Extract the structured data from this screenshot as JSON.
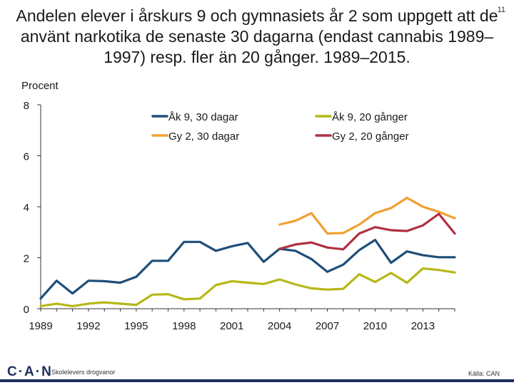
{
  "slide": {
    "title": "Andelen elever i årskurs 9 och gymnasiets år 2 som uppgett att de använt narkotika de senaste 30 dagarna (endast cannabis 1989–1997) resp. fler än 20 gånger. 1989–2015.",
    "page_number": "11",
    "logo_text": "C·A·N",
    "organization": "Skolelevers drogvanor",
    "source": "Källa: CAN"
  },
  "colors": {
    "ak9_30": "#1f4e79",
    "gy2_30": "#f0a030",
    "ak9_20": "#b5b818",
    "gy2_20": "#b03040",
    "axis": "#333333"
  },
  "chart_data": {
    "type": "line",
    "ylabel": "Procent",
    "ylim": [
      0,
      8
    ],
    "yticks": [
      0,
      2,
      4,
      6,
      8
    ],
    "xlim": [
      1989,
      2015
    ],
    "xticks": [
      1989,
      1992,
      1995,
      1998,
      2001,
      2004,
      2007,
      2010,
      2013
    ],
    "legend_position": "top",
    "series": [
      {
        "name": "Åk 9, 30 dagar",
        "color_key": "ak9_30",
        "x": [
          1989,
          1990,
          1991,
          1992,
          1993,
          1994,
          1995,
          1996,
          1997,
          1998,
          1999,
          2000,
          2001,
          2002,
          2003,
          2004,
          2005,
          2006,
          2007,
          2008,
          2009,
          2010,
          2011,
          2012,
          2013,
          2014,
          2015
        ],
        "values": [
          0.4,
          1.1,
          0.6,
          1.1,
          1.08,
          1.02,
          1.25,
          1.88,
          1.88,
          2.62,
          2.62,
          2.27,
          2.45,
          2.58,
          1.84,
          2.35,
          2.27,
          1.95,
          1.45,
          1.73,
          2.3,
          2.7,
          1.8,
          2.25,
          2.1,
          2.02,
          2.02
        ]
      },
      {
        "name": "Gy 2, 30 dagar",
        "color_key": "gy2_30",
        "x": [
          2004,
          2005,
          2006,
          2007,
          2008,
          2009,
          2010,
          2011,
          2012,
          2013,
          2014,
          2015
        ],
        "values": [
          3.3,
          3.45,
          3.75,
          2.95,
          2.97,
          3.3,
          3.75,
          3.95,
          4.35,
          4.0,
          3.8,
          3.55
        ]
      },
      {
        "name": "Åk 9, 20 gånger",
        "color_key": "ak9_20",
        "x": [
          1989,
          1990,
          1991,
          1992,
          1993,
          1994,
          1995,
          1996,
          1997,
          1998,
          1999,
          2000,
          2001,
          2002,
          2003,
          2004,
          2005,
          2006,
          2007,
          2008,
          2009,
          2010,
          2011,
          2012,
          2013,
          2014,
          2015
        ],
        "values": [
          0.1,
          0.2,
          0.1,
          0.2,
          0.25,
          0.2,
          0.15,
          0.55,
          0.57,
          0.37,
          0.4,
          0.93,
          1.08,
          1.02,
          0.97,
          1.15,
          0.95,
          0.8,
          0.75,
          0.78,
          1.35,
          1.05,
          1.4,
          1.02,
          1.58,
          1.52,
          1.42
        ]
      },
      {
        "name": "Gy 2, 20 gånger",
        "color_key": "gy2_20",
        "x": [
          2004,
          2005,
          2006,
          2007,
          2008,
          2009,
          2010,
          2011,
          2012,
          2013,
          2014,
          2015
        ],
        "values": [
          2.35,
          2.52,
          2.6,
          2.4,
          2.33,
          2.95,
          3.2,
          3.08,
          3.05,
          3.27,
          3.72,
          2.95
        ]
      }
    ]
  }
}
